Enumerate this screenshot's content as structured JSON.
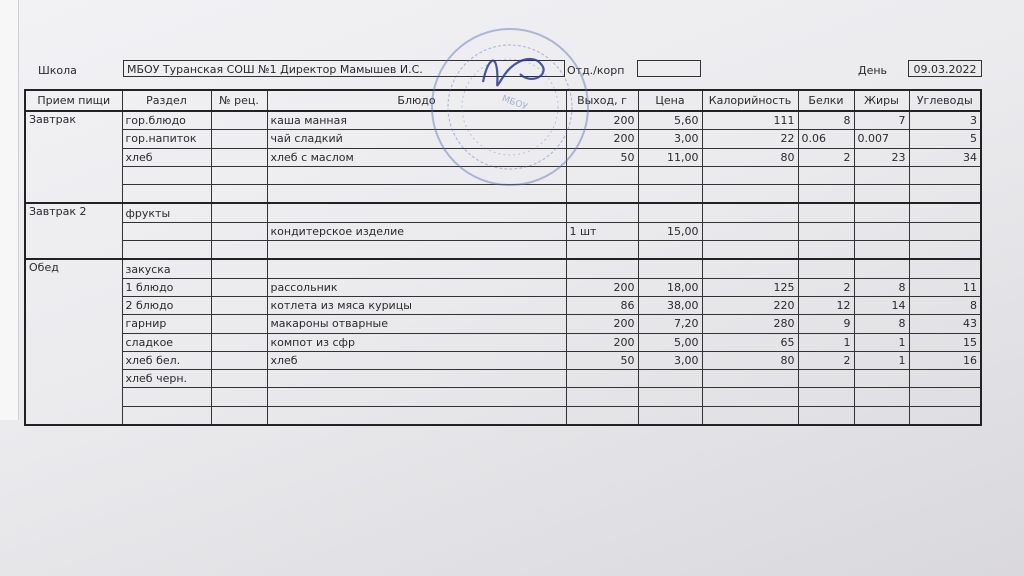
{
  "header": {
    "school_label": "Школа",
    "school_value": "МБОУ Туранская СОШ №1    Директор Мамышев И.С.",
    "dept_label": "Отд./корп",
    "dept_value": "",
    "day_label": "День",
    "day_value": "09.03.2022"
  },
  "stamp": {
    "text": "МБОУ Туранская СОШ №1"
  },
  "table": {
    "columns": [
      "Прием пищи",
      "Раздел",
      "№ рец.",
      "Блюдо",
      "Выход, г",
      "Цена",
      "Калорийность",
      "Белки",
      "Жиры",
      "Углеводы"
    ],
    "groups": [
      {
        "meal": "Завтрак",
        "rows": [
          [
            "гор.блюдо",
            "",
            "каша манная",
            "200",
            "5,60",
            "111",
            "8",
            "7",
            "3"
          ],
          [
            "гор.напиток",
            "",
            "чай сладкий",
            "200",
            "3,00",
            "22",
            "0.06",
            "0.007",
            "5"
          ],
          [
            "хлеб",
            "",
            "хлеб с маслом",
            "50",
            "11,00",
            "80",
            "2",
            "23",
            "34"
          ],
          [
            "",
            "",
            "",
            "",
            "",
            "",
            "",
            "",
            ""
          ],
          [
            "",
            "",
            "",
            "",
            "",
            "",
            "",
            "",
            ""
          ]
        ]
      },
      {
        "meal": "Завтрак 2",
        "rows": [
          [
            "фрукты",
            "",
            "",
            "",
            "",
            "",
            "",
            "",
            ""
          ],
          [
            "",
            "",
            "кондитерское изделие",
            "1 шт",
            "15,00",
            "",
            "",
            "",
            ""
          ],
          [
            "",
            "",
            "",
            "",
            "",
            "",
            "",
            "",
            ""
          ]
        ]
      },
      {
        "meal": "Обед",
        "rows": [
          [
            "закуска",
            "",
            "",
            "",
            "",
            "",
            "",
            "",
            ""
          ],
          [
            "1 блюдо",
            "",
            "рассольник",
            "200",
            "18,00",
            "125",
            "2",
            "8",
            "11"
          ],
          [
            "2 блюдо",
            "",
            "котлета из мяса курицы",
            "86",
            "38,00",
            "220",
            "12",
            "14",
            "8"
          ],
          [
            "гарнир",
            "",
            "макароны отварные",
            "200",
            "7,20",
            "280",
            "9",
            "8",
            "43"
          ],
          [
            "сладкое",
            "",
            "компот из сфр",
            "200",
            "5,00",
            "65",
            "1",
            "1",
            "15"
          ],
          [
            "хлеб бел.",
            "",
            "хлеб",
            "50",
            "3,00",
            "80",
            "2",
            "1",
            "16"
          ],
          [
            "хлеб черн.",
            "",
            "",
            "",
            "",
            "",
            "",
            "",
            ""
          ],
          [
            "",
            "",
            "",
            "",
            "",
            "",
            "",
            "",
            ""
          ],
          [
            "",
            "",
            "",
            "",
            "",
            "",
            "",
            "",
            ""
          ]
        ]
      }
    ]
  }
}
